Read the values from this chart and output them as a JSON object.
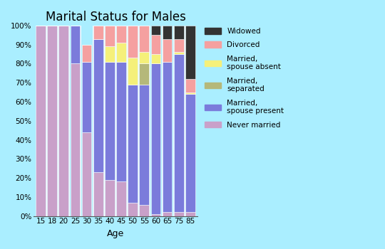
{
  "title": "Marital Status for Males",
  "xlabel": "Age",
  "age_labels": [
    "15",
    "18",
    "20",
    "25",
    "30",
    "35",
    "40",
    "45",
    "50",
    "55",
    "60",
    "65",
    "75",
    "85"
  ],
  "categories": [
    "Never married",
    "Married,\nspouse present",
    "Married,\nseparated",
    "Married,\nspouse absent",
    "Divorced",
    "Widowed"
  ],
  "colors": [
    "#c9a0c9",
    "#7b7bdb",
    "#b5b87a",
    "#f5f07a",
    "#f5a0a0",
    "#333333"
  ],
  "data": {
    "Never married": [
      100,
      100,
      100,
      80,
      44,
      23,
      19,
      18,
      7,
      6,
      1,
      2,
      2,
      2
    ],
    "Married,\nspouse present": [
      0,
      0,
      0,
      20,
      37,
      70,
      62,
      63,
      62,
      63,
      79,
      79,
      83,
      62
    ],
    "Married,\nseparated": [
      0,
      0,
      0,
      0,
      0,
      0,
      0,
      0,
      0,
      11,
      0,
      0,
      0,
      0
    ],
    "Married,\nspouse absent": [
      0,
      0,
      0,
      0,
      0,
      0,
      8,
      10,
      14,
      6,
      5,
      0,
      1,
      1
    ],
    "Divorced": [
      0,
      0,
      0,
      0,
      9,
      7,
      11,
      9,
      17,
      14,
      10,
      12,
      7,
      7
    ],
    "Widowed": [
      0,
      0,
      0,
      0,
      0,
      0,
      0,
      0,
      0,
      0,
      5,
      7,
      7,
      28
    ]
  },
  "background_color": "#aaeeff",
  "plot_bg_color": "#aaeeff",
  "bar_width": 0.85,
  "ylim": [
    0,
    100
  ],
  "yticks": [
    0,
    10,
    20,
    30,
    40,
    50,
    60,
    70,
    80,
    90,
    100
  ],
  "ytick_labels": [
    "0%",
    "10%",
    "20%",
    "30%",
    "40%",
    "50%",
    "60%",
    "70%",
    "80%",
    "90%",
    "100%"
  ],
  "legend_labels_reversed": [
    "Widowed",
    "Divorced",
    "Married,\nspouse absent",
    "Married,\nseparated",
    "Married,\nspouse present",
    "Never married"
  ],
  "legend_colors_reversed": [
    "#333333",
    "#f5a0a0",
    "#f5f07a",
    "#b5b87a",
    "#7b7bdb",
    "#c9a0c9"
  ]
}
